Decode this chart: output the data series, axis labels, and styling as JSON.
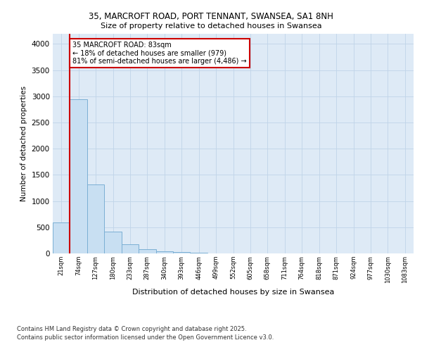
{
  "title1": "35, MARCROFT ROAD, PORT TENNANT, SWANSEA, SA1 8NH",
  "title2": "Size of property relative to detached houses in Swansea",
  "xlabel": "Distribution of detached houses by size in Swansea",
  "ylabel": "Number of detached properties",
  "bin_labels": [
    "21sqm",
    "74sqm",
    "127sqm",
    "180sqm",
    "233sqm",
    "287sqm",
    "340sqm",
    "393sqm",
    "446sqm",
    "499sqm",
    "552sqm",
    "605sqm",
    "658sqm",
    "711sqm",
    "764sqm",
    "818sqm",
    "871sqm",
    "924sqm",
    "977sqm",
    "1030sqm",
    "1083sqm"
  ],
  "bin_values": [
    590,
    2950,
    1320,
    415,
    170,
    80,
    40,
    25,
    10,
    4,
    0,
    0,
    0,
    0,
    0,
    0,
    0,
    0,
    0,
    0,
    0
  ],
  "bar_color": "#c8dff2",
  "bar_edge_color": "#7bafd4",
  "grid_color": "#c0d4e8",
  "background_color": "#deeaf6",
  "annotation_text": "35 MARCROFT ROAD: 83sqm\n← 18% of detached houses are smaller (979)\n81% of semi-detached houses are larger (4,486) →",
  "annotation_box_color": "#ffffff",
  "annotation_border_color": "#cc0000",
  "footer1": "Contains HM Land Registry data © Crown copyright and database right 2025.",
  "footer2": "Contains public sector information licensed under the Open Government Licence v3.0.",
  "ylim": [
    0,
    4200
  ],
  "yticks": [
    0,
    500,
    1000,
    1500,
    2000,
    2500,
    3000,
    3500,
    4000
  ],
  "figsize": [
    6.0,
    5.0
  ],
  "dpi": 100
}
